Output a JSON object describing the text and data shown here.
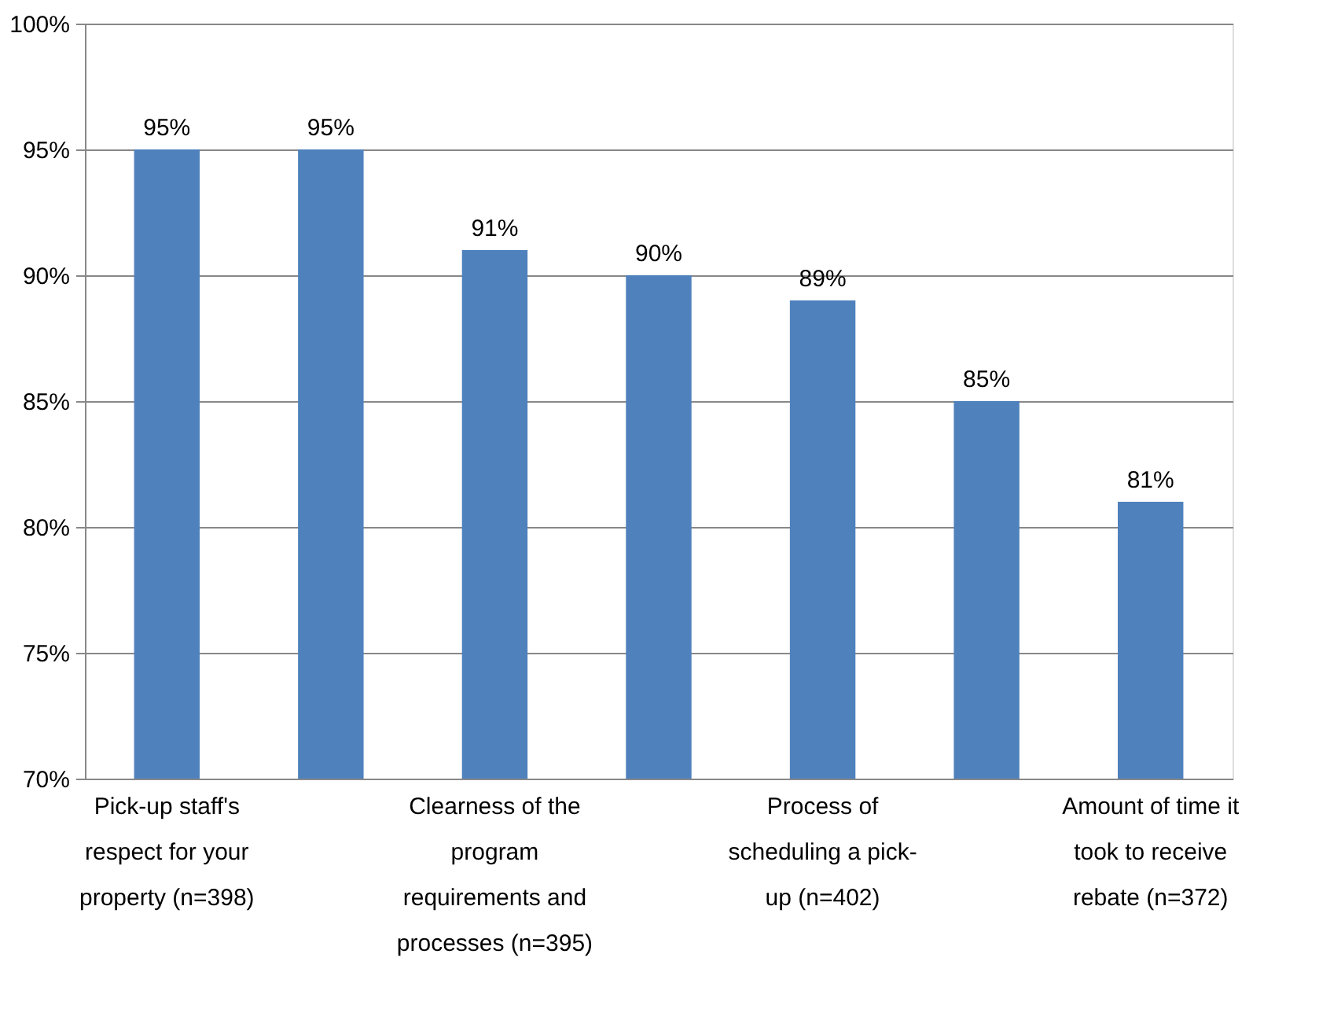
{
  "chart_data": {
    "type": "bar",
    "categories": [
      "Pick-up staff's respect for your property (n=398)",
      null,
      "Clearness of the program requirements and processes (n=395)",
      null,
      "Process of scheduling a pick-up (n=402)",
      null,
      "Amount of time it took to receive rebate (n=372)"
    ],
    "values": [
      95,
      95,
      91,
      90,
      89,
      85,
      81
    ],
    "value_labels": [
      "95%",
      "95%",
      "91%",
      "90%",
      "89%",
      "85%",
      "81%"
    ],
    "color": "#4f81bd",
    "ylim": [
      70,
      100
    ],
    "yticks": [
      {
        "value": 70,
        "label": "70%"
      },
      {
        "value": 75,
        "label": "75%"
      },
      {
        "value": 80,
        "label": "80%"
      },
      {
        "value": 85,
        "label": "85%"
      },
      {
        "value": 90,
        "label": "90%"
      },
      {
        "value": 95,
        "label": "95%"
      },
      {
        "value": 100,
        "label": "100%"
      }
    ],
    "grid": "y"
  }
}
